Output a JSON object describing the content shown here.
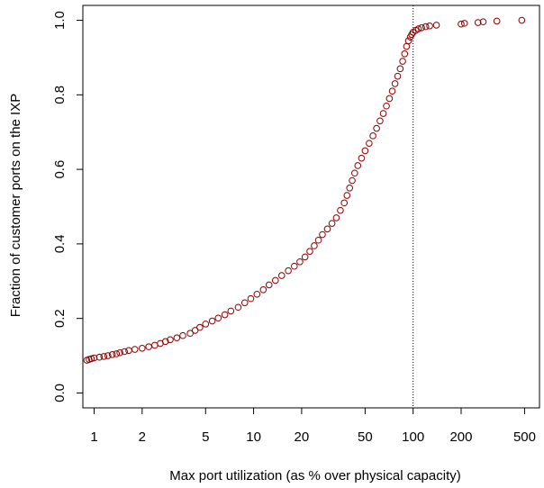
{
  "chart_data": {
    "type": "scatter",
    "title": "",
    "xlabel": "Max port utilization (as % over physical capacity)",
    "ylabel": "Fraction of customer ports on the IXP",
    "x_scale": "log",
    "xlim": [
      0.85,
      620
    ],
    "ylim": [
      -0.04,
      1.04
    ],
    "x_ticks": [
      1,
      2,
      5,
      10,
      20,
      50,
      100,
      200,
      500
    ],
    "x_tick_labels": [
      "1",
      "2",
      "5",
      "10",
      "20",
      "50",
      "100",
      "200",
      "500"
    ],
    "y_ticks": [
      0.0,
      0.2,
      0.4,
      0.6,
      0.8,
      1.0
    ],
    "y_tick_labels": [
      "0.0",
      "0.2",
      "0.4",
      "0.6",
      "0.8",
      "1.0"
    ],
    "grid": false,
    "marker": "open-circle",
    "marker_color": "#8b0000",
    "reference_line": {
      "x": 100,
      "style": "dotted",
      "color": "#000000"
    },
    "series": [
      {
        "points": [
          [
            0.9,
            0.088
          ],
          [
            0.93,
            0.09
          ],
          [
            0.96,
            0.092
          ],
          [
            1.0,
            0.094
          ],
          [
            1.08,
            0.096
          ],
          [
            1.15,
            0.098
          ],
          [
            1.22,
            0.1
          ],
          [
            1.3,
            0.103
          ],
          [
            1.38,
            0.105
          ],
          [
            1.45,
            0.108
          ],
          [
            1.55,
            0.111
          ],
          [
            1.65,
            0.114
          ],
          [
            1.8,
            0.117
          ],
          [
            2.0,
            0.12
          ],
          [
            2.2,
            0.124
          ],
          [
            2.4,
            0.128
          ],
          [
            2.6,
            0.133
          ],
          [
            2.8,
            0.138
          ],
          [
            3.0,
            0.143
          ],
          [
            3.3,
            0.148
          ],
          [
            3.6,
            0.154
          ],
          [
            4.0,
            0.16
          ],
          [
            4.3,
            0.168
          ],
          [
            4.6,
            0.176
          ],
          [
            5.0,
            0.185
          ],
          [
            5.5,
            0.193
          ],
          [
            6.0,
            0.201
          ],
          [
            6.6,
            0.21
          ],
          [
            7.2,
            0.22
          ],
          [
            8.0,
            0.23
          ],
          [
            8.8,
            0.242
          ],
          [
            9.6,
            0.253
          ],
          [
            10.5,
            0.265
          ],
          [
            11.5,
            0.277
          ],
          [
            12.5,
            0.29
          ],
          [
            13.7,
            0.302
          ],
          [
            15.0,
            0.315
          ],
          [
            16.5,
            0.328
          ],
          [
            18.0,
            0.34
          ],
          [
            19.5,
            0.352
          ],
          [
            21.0,
            0.365
          ],
          [
            22.5,
            0.38
          ],
          [
            24.0,
            0.395
          ],
          [
            25.5,
            0.41
          ],
          [
            27.0,
            0.425
          ],
          [
            29.0,
            0.44
          ],
          [
            31.0,
            0.455
          ],
          [
            33.0,
            0.47
          ],
          [
            35.0,
            0.49
          ],
          [
            37.0,
            0.51
          ],
          [
            38.5,
            0.53
          ],
          [
            40.0,
            0.55
          ],
          [
            41.5,
            0.57
          ],
          [
            43.0,
            0.59
          ],
          [
            45.0,
            0.61
          ],
          [
            47.5,
            0.63
          ],
          [
            50.0,
            0.65
          ],
          [
            53.0,
            0.67
          ],
          [
            56.0,
            0.69
          ],
          [
            59.0,
            0.71
          ],
          [
            62.0,
            0.73
          ],
          [
            65.0,
            0.75
          ],
          [
            68.0,
            0.77
          ],
          [
            71.0,
            0.79
          ],
          [
            74.0,
            0.81
          ],
          [
            77.0,
            0.83
          ],
          [
            80.0,
            0.85
          ],
          [
            83.0,
            0.87
          ],
          [
            86.0,
            0.89
          ],
          [
            88.5,
            0.91
          ],
          [
            91.0,
            0.93
          ],
          [
            93.5,
            0.945
          ],
          [
            96.0,
            0.955
          ],
          [
            98.0,
            0.962
          ],
          [
            100.0,
            0.968
          ],
          [
            104.0,
            0.973
          ],
          [
            108.0,
            0.977
          ],
          [
            113.0,
            0.98
          ],
          [
            120.0,
            0.983
          ],
          [
            127.0,
            0.985
          ],
          [
            140.0,
            0.987
          ],
          [
            200.0,
            0.99
          ],
          [
            210.0,
            0.992
          ],
          [
            255.0,
            0.994
          ],
          [
            275.0,
            0.996
          ],
          [
            335.0,
            0.998
          ],
          [
            480.0,
            1.0
          ]
        ]
      }
    ]
  }
}
